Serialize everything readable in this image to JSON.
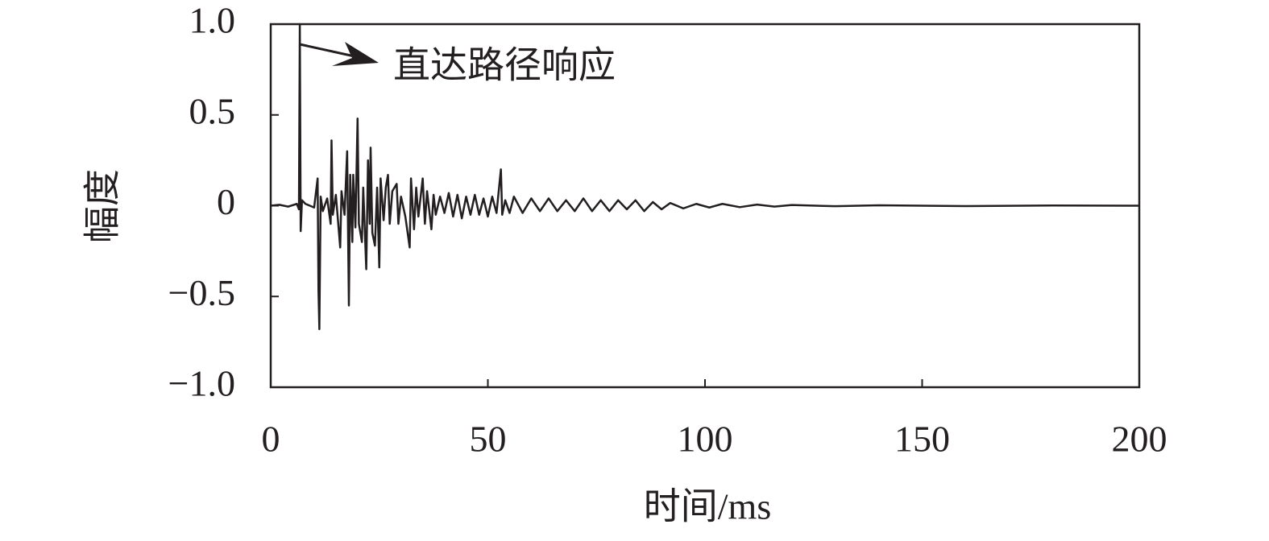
{
  "chart_data": {
    "type": "line",
    "xlabel": "时间/ms",
    "ylabel": "幅度",
    "annotation": "直达路径响应",
    "xlim": [
      0,
      200
    ],
    "xticks": [
      0,
      50,
      100,
      150,
      200
    ],
    "ylim": [
      -1,
      1
    ],
    "yticks": [
      {
        "value": -1,
        "label": "−1.0"
      },
      {
        "value": -0.5,
        "label": "−0.5"
      },
      0,
      {
        "value": 0.5,
        "label": "0.5"
      },
      {
        "value": 1,
        "label": "1.0"
      }
    ],
    "color": "#231f20",
    "x": [
      0,
      2,
      4,
      6,
      6.5,
      6.7,
      6.9,
      7.2,
      8,
      10,
      10.8,
      11,
      11.2,
      11.5,
      12,
      13,
      13.8,
      14,
      14.3,
      15,
      16,
      16.3,
      17,
      17.6,
      18,
      18.3,
      18.8,
      19,
      19.5,
      20,
      20.3,
      21,
      21.3,
      22,
      22.4,
      22.8,
      23,
      23.4,
      24,
      24.5,
      25,
      25.3,
      26,
      26.5,
      27,
      27.4,
      28,
      29,
      29.4,
      30,
      31,
      32,
      32.3,
      33,
      33.5,
      34,
      35,
      35.5,
      36,
      37,
      37.5,
      38,
      39,
      40,
      41,
      42,
      43,
      44,
      45,
      46,
      47,
      48,
      49,
      50,
      51,
      52,
      53,
      53.3,
      54,
      55,
      56,
      58,
      60,
      62,
      64,
      66,
      68,
      70,
      72,
      74,
      76,
      78,
      80,
      82,
      84,
      86,
      88,
      90,
      92,
      95,
      98,
      101,
      104,
      108,
      112,
      116,
      120,
      130,
      140,
      160,
      180,
      200
    ],
    "values": [
      0,
      0.005,
      -0.005,
      0.01,
      -0.02,
      1.0,
      -0.14,
      0.03,
      0.01,
      -0.01,
      0.15,
      -0.47,
      -0.68,
      0.05,
      -0.03,
      0.04,
      -0.1,
      0.36,
      -0.05,
      0.06,
      -0.23,
      0.08,
      -0.05,
      0.3,
      -0.55,
      0.17,
      -0.2,
      0.17,
      -0.12,
      0.48,
      -0.1,
      -0.2,
      0.1,
      -0.35,
      0.25,
      -0.1,
      0.32,
      -0.15,
      -0.22,
      0.1,
      -0.34,
      0.15,
      -0.08,
      0.1,
      0.17,
      -0.1,
      0.08,
      0.12,
      -0.1,
      0.05,
      -0.06,
      -0.23,
      0.15,
      -0.13,
      0.1,
      -0.06,
      0.15,
      -0.1,
      0.08,
      -0.13,
      0.06,
      -0.05,
      0.05,
      -0.04,
      0.07,
      -0.06,
      0.06,
      -0.07,
      0.05,
      -0.05,
      0.06,
      -0.05,
      0.04,
      -0.06,
      0.05,
      -0.04,
      0.2,
      -0.05,
      0.03,
      -0.04,
      0.05,
      -0.04,
      0.04,
      -0.03,
      0.04,
      -0.03,
      0.03,
      -0.03,
      0.04,
      -0.03,
      0.03,
      -0.03,
      0.03,
      -0.02,
      0.03,
      -0.03,
      0.02,
      -0.02,
      0.015,
      -0.015,
      0.01,
      -0.01,
      0.01,
      -0.008,
      0.006,
      -0.005,
      0.004,
      -0.003,
      0.002,
      -0.002,
      0.001,
      0
    ]
  }
}
